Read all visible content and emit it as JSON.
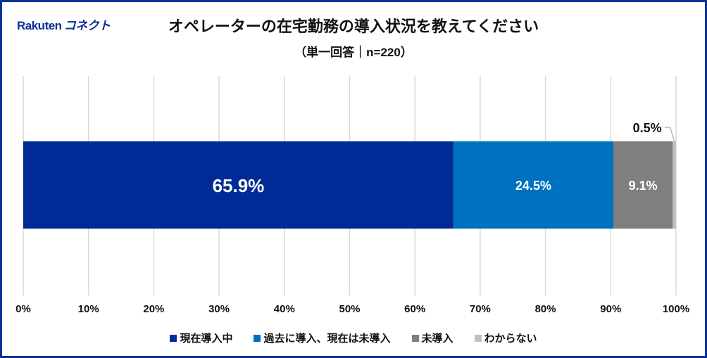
{
  "logo": {
    "text_latin": "Rakuten",
    "text_kana": "コネクト"
  },
  "chart_data": {
    "type": "bar",
    "orientation": "horizontal-stacked-100",
    "title": "オペレーターの在宅勤務の導入状況を教えてください",
    "subtitle": "（単一回答｜n=220）",
    "xlim": [
      0,
      100
    ],
    "x_ticks": [
      "0%",
      "10%",
      "20%",
      "30%",
      "40%",
      "50%",
      "60%",
      "70%",
      "80%",
      "90%",
      "100%"
    ],
    "grid": true,
    "legend_position": "bottom",
    "series": [
      {
        "name": "現在導入中",
        "value": 65.9,
        "label": "65.9%",
        "color": "#002b96",
        "label_color": "#ffffff"
      },
      {
        "name": "過去に導入、現在は未導入",
        "value": 24.5,
        "label": "24.5%",
        "color": "#0070c0",
        "label_color": "#ffffff"
      },
      {
        "name": "未導入",
        "value": 9.1,
        "label": "9.1%",
        "color": "#7f7f7f",
        "label_color": "#ffffff"
      },
      {
        "name": "わからない",
        "value": 0.5,
        "label": "0.5%",
        "color": "#c0c0c0",
        "label_color": "#111111"
      }
    ]
  }
}
